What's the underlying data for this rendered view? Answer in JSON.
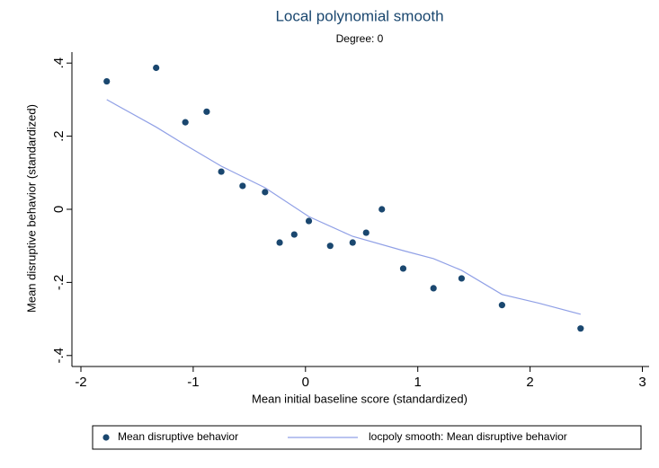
{
  "chart_data": {
    "type": "scatter",
    "title": "Local polynomial smooth",
    "subtitle": "Degree: 0",
    "x_label": "Mean initial baseline score (standardized)",
    "y_label": "Mean disruptive behavior (standardized)",
    "xlim": [
      -2.08,
      3.06
    ],
    "ylim": [
      -0.43,
      0.43
    ],
    "xticks": [
      -2,
      -1,
      0,
      1,
      2,
      3
    ],
    "yticks": [
      {
        "value": -0.4,
        "label": "-.4"
      },
      {
        "value": -0.2,
        "label": "-.2"
      },
      0,
      {
        "value": 0.2,
        "label": ".2"
      },
      {
        "value": 0.4,
        "label": ".4"
      }
    ],
    "legend": "bottom",
    "series": [
      {
        "name": "Mean disruptive behavior",
        "type": "scatter",
        "color": "#1a476f",
        "x": [
          -1.77,
          -1.33,
          -1.07,
          -0.88,
          -0.75,
          -0.56,
          -0.36,
          -0.23,
          -0.1,
          0.03,
          0.22,
          0.42,
          0.54,
          0.68,
          0.87,
          1.14,
          1.39,
          1.75,
          2.45
        ],
        "values": [
          0.35,
          0.387,
          0.238,
          0.267,
          0.103,
          0.064,
          0.047,
          -0.091,
          -0.069,
          -0.032,
          -0.1,
          -0.091,
          -0.064,
          0.0,
          -0.162,
          -0.216,
          -0.189,
          -0.262,
          -0.326
        ]
      },
      {
        "name": "locpoly smooth: Mean disruptive behavior",
        "type": "line",
        "color": "#90a0e6",
        "x": [
          -1.77,
          -1.33,
          -1.07,
          -0.75,
          -0.36,
          0.03,
          0.42,
          0.87,
          1.14,
          1.39,
          1.75,
          2.08,
          2.45
        ],
        "values": [
          0.3,
          0.225,
          0.176,
          0.118,
          0.059,
          -0.02,
          -0.074,
          -0.113,
          -0.135,
          -0.167,
          -0.233,
          -0.257,
          -0.287
        ]
      }
    ]
  }
}
